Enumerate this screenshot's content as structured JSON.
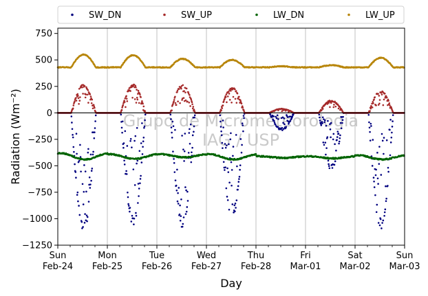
{
  "chart_data": {
    "type": "scatter",
    "xlabel": "Day",
    "ylabel": "Radiation (Wm⁻²)",
    "ylim": [
      -1250,
      800
    ],
    "yticks": [
      750,
      500,
      250,
      0,
      -250,
      -500,
      -750,
      -1000,
      -1250
    ],
    "xlim": [
      0,
      7
    ],
    "xticks": [
      {
        "day": 0,
        "line1": "Sun",
        "line2": "Feb-24"
      },
      {
        "day": 1,
        "line1": "Mon",
        "line2": "Feb-25"
      },
      {
        "day": 2,
        "line1": "Tue",
        "line2": "Feb-26"
      },
      {
        "day": 3,
        "line1": "Wed",
        "line2": "Feb-27"
      },
      {
        "day": 4,
        "line1": "Thu",
        "line2": "Feb-28"
      },
      {
        "day": 5,
        "line1": "Fri",
        "line2": "Mar-01"
      },
      {
        "day": 6,
        "line1": "Sat",
        "line2": "Mar-02"
      },
      {
        "day": 7,
        "line1": "Sun",
        "line2": "Mar-03"
      }
    ],
    "grid": "vertical",
    "zero_line": true,
    "legend_position": "top",
    "watermark": [
      "Grupo de Micrometeorologia",
      "IAG / USP"
    ],
    "series": [
      {
        "name": "SW_DN",
        "color": "#00007f",
        "night_value": 0,
        "daily_peak": [
          -1150,
          -1060,
          -1090,
          -1000,
          -165,
          -540,
          -1100
        ]
      },
      {
        "name": "SW_UP",
        "color": "#a52a2a",
        "night_value": 0,
        "daily_peak": [
          270,
          270,
          270,
          240,
          40,
          120,
          210
        ]
      },
      {
        "name": "LW_DN",
        "color": "#006400",
        "baseline": -400,
        "daily_range": [
          [
            -380,
            -440
          ],
          [
            -390,
            -435
          ],
          [
            -390,
            -420
          ],
          [
            -390,
            -440
          ],
          [
            -410,
            -425
          ],
          [
            -410,
            -430
          ],
          [
            -400,
            -440
          ]
        ]
      },
      {
        "name": "LW_UP",
        "color": "#b8860b",
        "baseline": 430,
        "daily_peak": [
          550,
          545,
          510,
          500,
          440,
          450,
          520
        ]
      }
    ]
  }
}
